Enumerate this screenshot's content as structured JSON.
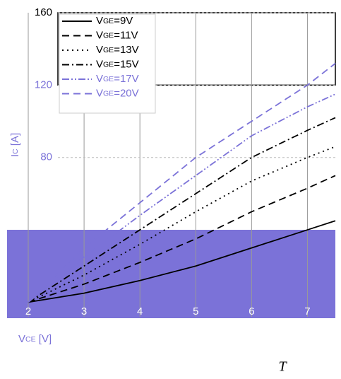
{
  "chart_data": {
    "type": "line",
    "xlabel": "VCE [V]",
    "ylabel": "IC [A]",
    "annotation": "T",
    "x": [
      2,
      3,
      4,
      5,
      6,
      7,
      7.5
    ],
    "series": [
      {
        "name": "VGE=9V",
        "color": "#000000",
        "style": "solid",
        "values": [
          0,
          5,
          12,
          20,
          30,
          40,
          45
        ]
      },
      {
        "name": "VGE=11V",
        "color": "#000000",
        "style": "dashed",
        "values": [
          0,
          10,
          22,
          35,
          50,
          63,
          70
        ]
      },
      {
        "name": "VGE=13V",
        "color": "#000000",
        "style": "dotted",
        "values": [
          0,
          15,
          32,
          50,
          67,
          80,
          86
        ]
      },
      {
        "name": "VGE=15V",
        "color": "#000000",
        "style": "dashdot",
        "values": [
          0,
          20,
          40,
          60,
          80,
          95,
          102
        ]
      },
      {
        "name": "VGE=17V",
        "color": "#7b72d8",
        "style": "dashdotdot",
        "values": [
          0,
          25,
          48,
          70,
          92,
          108,
          115
        ]
      },
      {
        "name": "VGE=20V",
        "color": "#7b72d8",
        "style": "dashed",
        "values": [
          0,
          30,
          55,
          80,
          100,
          120,
          132
        ]
      }
    ],
    "xlim": [
      2,
      7.5
    ],
    "xticks": [
      2,
      3,
      4,
      5,
      6,
      7
    ],
    "ylim": [
      -10,
      160
    ],
    "yticks": [
      80,
      120,
      160
    ],
    "grid": true,
    "legend": "upper left"
  }
}
